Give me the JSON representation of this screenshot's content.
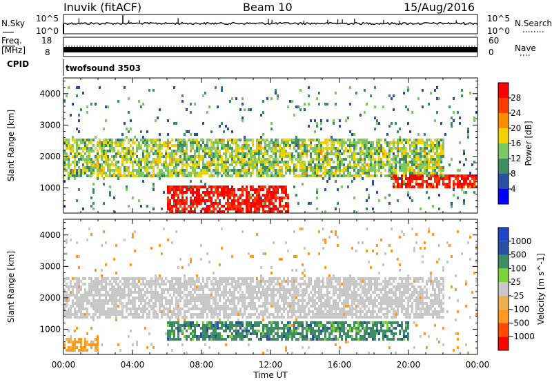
{
  "header": {
    "radar": "Inuvik (fitACF)",
    "beam": "Beam 10",
    "date": "15/Aug/2016"
  },
  "sky_panel": {
    "label": "N.Sky",
    "right_label": "N.Search",
    "ticks_left": [
      "10^5",
      "10^0"
    ],
    "ticks_right": [
      "10^5",
      "10^0"
    ]
  },
  "freq_panel": {
    "label_top": "Freq.",
    "label_unit": "[MHz]",
    "ticks_left": [
      "18",
      "8"
    ],
    "ticks_right": [
      "60",
      "0"
    ],
    "right_label": "Nave"
  },
  "cpid_panel": {
    "label": "CPID",
    "value": "twofsound 3503"
  },
  "colors": {
    "power_scale": [
      "#0000ff",
      "#2a4ea0",
      "#3c8c64",
      "#7dc864",
      "#f0d200",
      "#ff8c00",
      "#ff3c00",
      "#ff0000"
    ],
    "velocity_scale": [
      "#ff0000",
      "#ff4a00",
      "#ff9a1e",
      "#f0b050",
      "#c8c8c8",
      "#7dd23c",
      "#3c8c64",
      "#2a4ea0",
      "#1e46c8"
    ],
    "ground_scatter": "#c8c8c8"
  },
  "chart_data": [
    {
      "type": "heatmap",
      "title": "",
      "xlabel": "Time UT",
      "ylabel": "Slant Range [km]",
      "xticks": [
        "00:00",
        "04:00",
        "08:00",
        "12:00",
        "16:00",
        "20:00",
        "00:00"
      ],
      "yticks": [
        "1000",
        "2000",
        "3000",
        "4000"
      ],
      "ylim": [
        200,
        4500
      ],
      "colorbar": {
        "label": "Power [dB]",
        "ticks": [
          "4",
          "8",
          "12",
          "16",
          "20",
          "24",
          "28"
        ],
        "range": [
          0,
          30
        ]
      },
      "features": [
        {
          "name": "near-range red band",
          "time_hours": [
            6,
            13
          ],
          "range_km": [
            250,
            1100
          ],
          "power_db": 28
        },
        {
          "name": "mid-range echoes",
          "time_hours": [
            0,
            22
          ],
          "range_km": [
            1400,
            2600
          ],
          "power_db": 14
        },
        {
          "name": "late red layer",
          "time_hours": [
            19,
            24
          ],
          "range_km": [
            1000,
            1500
          ],
          "power_db": 26
        }
      ]
    },
    {
      "type": "heatmap",
      "title": "",
      "xlabel": "Time UT",
      "ylabel": "Slant Range [km]",
      "xticks": [
        "00:00",
        "04:00",
        "08:00",
        "12:00",
        "16:00",
        "20:00",
        "00:00"
      ],
      "yticks": [
        "1000",
        "2000",
        "3000",
        "4000"
      ],
      "ylim": [
        200,
        4500
      ],
      "colorbar": {
        "label": "Velocity [m s^-1]",
        "ticks": [
          "1000",
          "500",
          "100",
          "25",
          "-25",
          "-100",
          "-500",
          "-1000"
        ],
        "range": [
          -1000,
          1000
        ]
      },
      "features": [
        {
          "name": "ground scatter band",
          "time_hours": [
            0,
            22
          ],
          "range_km": [
            1400,
            2700
          ],
          "velocity": 0
        },
        {
          "name": "positive velocity band",
          "time_hours": [
            6,
            20
          ],
          "range_km": [
            700,
            1300
          ],
          "velocity": 120
        },
        {
          "name": "negative velocity near range",
          "time_hours": [
            0,
            2
          ],
          "range_km": [
            300,
            800
          ],
          "velocity": -300
        }
      ]
    }
  ]
}
